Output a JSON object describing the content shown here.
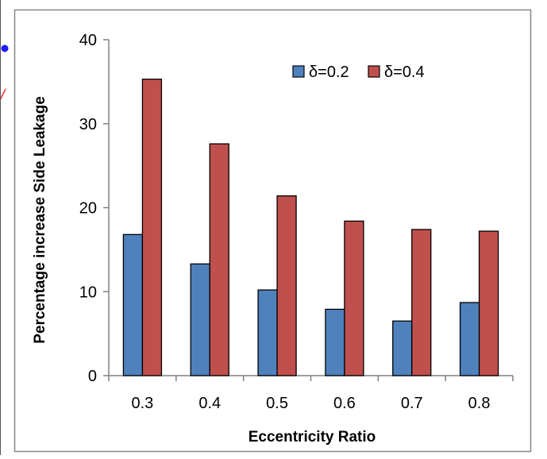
{
  "chart_data": {
    "type": "bar",
    "categories": [
      "0.3",
      "0.4",
      "0.5",
      "0.6",
      "0.7",
      "0.8"
    ],
    "series": [
      {
        "name": "δ=0.2",
        "color": "#4F81BD",
        "values": [
          16.8,
          13.3,
          10.2,
          7.9,
          6.5,
          8.7
        ]
      },
      {
        "name": "δ=0.4",
        "color": "#C0504D",
        "values": [
          35.3,
          27.6,
          21.4,
          18.4,
          17.4,
          17.2
        ]
      }
    ],
    "title": "",
    "xlabel": "Eccentricity Ratio",
    "ylabel": "Percentage increase Side Leakage",
    "ylim": [
      0,
      40
    ],
    "yticks": [
      0,
      10,
      20,
      30,
      40
    ],
    "grid": false,
    "legend_position": "top-right"
  }
}
